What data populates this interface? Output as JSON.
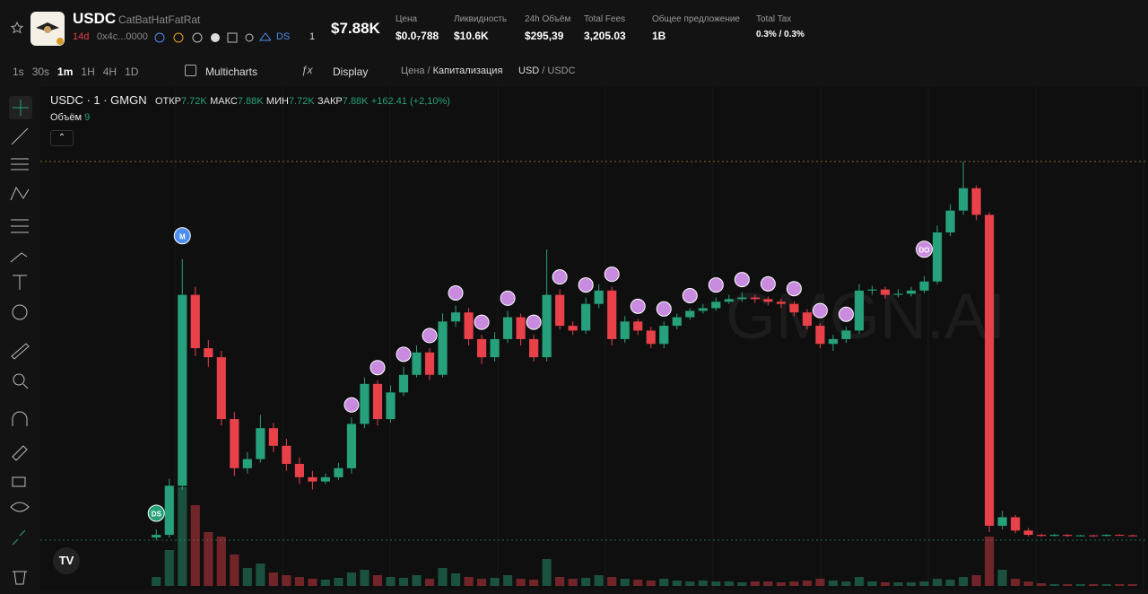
{
  "header": {
    "symbol": "USDC",
    "name": "CatBatHatFatRat",
    "age": "14d",
    "address": "0x4c...0000",
    "ds": "DS",
    "watchers": "1",
    "market_cap": "$7.88K",
    "stats": [
      {
        "label": "Цена",
        "value": "$0.0₇788"
      },
      {
        "label": "Ликвидность",
        "value": "$10.6K"
      },
      {
        "label": "24h Объём",
        "value": "$295,39"
      },
      {
        "label": "Total Fees",
        "value": "3,205.03"
      },
      {
        "label": "Общее предложение",
        "value": "1B"
      },
      {
        "label": "Total Tax",
        "value": "0.3% / 0.3%"
      }
    ]
  },
  "toolbar": {
    "intervals": [
      "1s",
      "30s",
      "1m",
      "1H",
      "4H",
      "1D"
    ],
    "multicharts": "Multicharts",
    "display": "Display",
    "price": "Цена",
    "cap": "Капитализация",
    "usd": "USD",
    "usdc": "USDC"
  },
  "legend": {
    "title": "USDC · 1 · GMGN",
    "open_label": "ОТКР",
    "open": "7.72K",
    "high_label": "МАКС",
    "high": "7.88K",
    "low_label": "МИН",
    "low": "7.72K",
    "close_label": "ЗАКР",
    "close": "7.88K",
    "change": "+162.41 (+2,10%)",
    "volume_label": "Объём",
    "volume": "9"
  },
  "watermark": "GMGN.AI",
  "markers": [
    "M",
    "DS",
    "DO"
  ],
  "chart_data": {
    "type": "candlestick",
    "up_color": "#27a17b",
    "down_color": "#e8414a",
    "candles": [
      [
        0.9,
        1.05,
        0.85,
        0.95
      ],
      [
        0.95,
        2.0,
        0.9,
        1.87
      ],
      [
        1.87,
        6.12,
        1.8,
        5.45
      ],
      [
        5.45,
        5.6,
        4.3,
        4.45
      ],
      [
        4.45,
        4.6,
        4.1,
        4.28
      ],
      [
        4.28,
        4.4,
        3.0,
        3.12
      ],
      [
        3.12,
        3.25,
        2.05,
        2.2
      ],
      [
        2.2,
        2.5,
        2.1,
        2.37
      ],
      [
        2.37,
        3.2,
        2.3,
        2.95
      ],
      [
        2.95,
        3.05,
        2.5,
        2.62
      ],
      [
        2.62,
        2.75,
        2.15,
        2.28
      ],
      [
        2.28,
        2.4,
        1.9,
        2.03
      ],
      [
        2.03,
        2.15,
        1.8,
        1.95
      ],
      [
        1.95,
        2.1,
        1.9,
        2.03
      ],
      [
        2.03,
        2.3,
        1.98,
        2.2
      ],
      [
        2.2,
        3.15,
        2.1,
        3.03
      ],
      [
        3.03,
        3.9,
        2.95,
        3.78
      ],
      [
        3.78,
        3.85,
        3.0,
        3.12
      ],
      [
        3.12,
        3.75,
        3.05,
        3.62
      ],
      [
        3.62,
        4.1,
        3.55,
        3.95
      ],
      [
        3.95,
        4.5,
        3.9,
        4.37
      ],
      [
        4.37,
        4.45,
        3.85,
        3.95
      ],
      [
        3.95,
        5.1,
        3.9,
        4.95
      ],
      [
        4.95,
        5.25,
        4.85,
        5.12
      ],
      [
        5.12,
        5.2,
        4.5,
        4.62
      ],
      [
        4.62,
        4.7,
        4.15,
        4.28
      ],
      [
        4.28,
        4.75,
        4.2,
        4.62
      ],
      [
        4.62,
        5.15,
        4.55,
        5.03
      ],
      [
        5.03,
        5.1,
        4.5,
        4.62
      ],
      [
        4.62,
        4.7,
        4.2,
        4.28
      ],
      [
        4.28,
        6.3,
        4.2,
        5.45
      ],
      [
        5.45,
        5.55,
        4.8,
        4.87
      ],
      [
        4.87,
        4.95,
        4.7,
        4.78
      ],
      [
        4.78,
        5.4,
        4.72,
        5.28
      ],
      [
        5.28,
        5.65,
        5.2,
        5.53
      ],
      [
        5.53,
        5.6,
        4.5,
        4.62
      ],
      [
        4.62,
        5.05,
        4.55,
        4.95
      ],
      [
        4.95,
        5.0,
        4.7,
        4.78
      ],
      [
        4.78,
        4.85,
        4.45,
        4.53
      ],
      [
        4.53,
        4.95,
        4.45,
        4.87
      ],
      [
        4.87,
        5.1,
        4.8,
        5.03
      ],
      [
        5.03,
        5.2,
        4.98,
        5.15
      ],
      [
        5.15,
        5.28,
        5.1,
        5.2
      ],
      [
        5.2,
        5.4,
        5.15,
        5.32
      ],
      [
        5.32,
        5.45,
        5.28,
        5.37
      ],
      [
        5.37,
        5.5,
        5.32,
        5.4
      ],
      [
        5.4,
        5.45,
        5.3,
        5.37
      ],
      [
        5.37,
        5.42,
        5.25,
        5.32
      ],
      [
        5.32,
        5.38,
        5.2,
        5.28
      ],
      [
        5.28,
        5.33,
        5.05,
        5.12
      ],
      [
        5.12,
        5.18,
        4.8,
        4.87
      ],
      [
        4.87,
        4.92,
        4.45,
        4.53
      ],
      [
        4.53,
        4.7,
        4.4,
        4.62
      ],
      [
        4.62,
        4.85,
        4.55,
        4.78
      ],
      [
        4.78,
        5.65,
        4.72,
        5.53
      ],
      [
        5.53,
        5.62,
        5.45,
        5.55
      ],
      [
        5.55,
        5.6,
        5.38,
        5.45
      ],
      [
        5.45,
        5.55,
        5.4,
        5.47
      ],
      [
        5.47,
        5.6,
        5.42,
        5.53
      ],
      [
        5.53,
        5.8,
        5.48,
        5.7
      ],
      [
        5.7,
        6.75,
        5.65,
        6.62
      ],
      [
        6.62,
        7.15,
        6.55,
        7.03
      ],
      [
        7.03,
        7.95,
        6.95,
        7.45
      ],
      [
        7.45,
        7.5,
        6.85,
        6.95
      ],
      [
        6.95,
        7.0,
        1.0,
        1.12
      ],
      [
        1.12,
        1.4,
        1.05,
        1.28
      ],
      [
        1.28,
        1.32,
        0.98,
        1.03
      ],
      [
        1.03,
        1.08,
        0.92,
        0.95
      ],
      [
        0.95,
        0.97,
        0.91,
        0.93
      ],
      [
        0.93,
        0.97,
        0.92,
        0.95
      ],
      [
        0.95,
        0.96,
        0.91,
        0.93
      ],
      [
        0.93,
        0.95,
        0.92,
        0.94
      ],
      [
        0.94,
        0.95,
        0.91,
        0.93
      ],
      [
        0.93,
        0.96,
        0.92,
        0.95
      ],
      [
        0.95,
        0.96,
        0.93,
        0.94
      ],
      [
        0.94,
        0.95,
        0.92,
        0.93
      ]
    ],
    "volumes": [
      10,
      40,
      110,
      90,
      60,
      55,
      35,
      20,
      25,
      15,
      12,
      10,
      8,
      7,
      9,
      15,
      18,
      12,
      10,
      9,
      12,
      8,
      20,
      14,
      10,
      8,
      9,
      12,
      8,
      7,
      30,
      10,
      8,
      9,
      12,
      10,
      8,
      7,
      6,
      8,
      6,
      5,
      6,
      5,
      5,
      4,
      5,
      5,
      4,
      5,
      6,
      8,
      6,
      5,
      10,
      5,
      4,
      4,
      4,
      5,
      8,
      7,
      10,
      12,
      55,
      18,
      8,
      5,
      3,
      2,
      2,
      2,
      2,
      2,
      2,
      2
    ]
  }
}
